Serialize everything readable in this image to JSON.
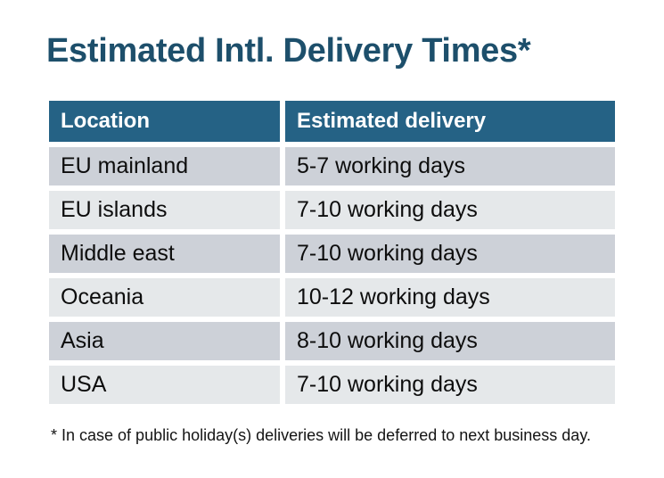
{
  "title": "Estimated Intl. Delivery Times*",
  "table": {
    "columns": [
      "Location",
      "Estimated delivery"
    ],
    "rows": [
      {
        "location": "EU mainland",
        "delivery": "5-7 working days"
      },
      {
        "location": "EU islands",
        "delivery": "7-10 working days"
      },
      {
        "location": "Middle east",
        "delivery": "7-10 working days"
      },
      {
        "location": "Oceania",
        "delivery": "10-12 working days"
      },
      {
        "location": "Asia",
        "delivery": "8-10 working days"
      },
      {
        "location": "USA",
        "delivery": "7-10 working days"
      }
    ]
  },
  "footnote": "* In case of public holiday(s) deliveries will be deferred to next business day.",
  "colors": {
    "header_bg": "#256285",
    "header_text": "#FFFFFF",
    "title_text": "#1D4F6B",
    "row_dark": "#CDD1D8",
    "row_light": "#E5E8EA",
    "body_text": "#0D0D0D",
    "page_bg": "#FFFFFF"
  }
}
